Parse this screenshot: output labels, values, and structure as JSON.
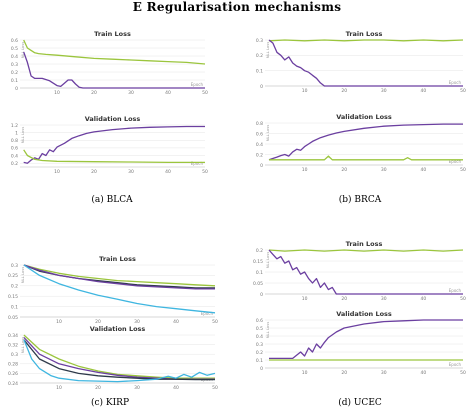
{
  "section_title": "E    Regularisation mechanisms",
  "captions": {
    "blca": "(a) BLCA",
    "brca": "(b) BRCA",
    "kirp": "(c) KIRP",
    "ucec": "(d) UCEC"
  },
  "colors": {
    "green": "#9bc53d",
    "purple": "#6b3fa0",
    "cyan": "#3fb6e0",
    "dark": "#2e3a4a",
    "grid": "#e6e6e6"
  },
  "chart_data": [
    {
      "type": "line",
      "panel": "BLCA",
      "title": "Train Loss",
      "ylabel": "NLL Loss",
      "xlabel": "Epoch",
      "xlim": [
        0,
        50
      ],
      "ylim": [
        0,
        0.6
      ],
      "yticks": [
        "0",
        "0.1",
        "0.2",
        "0.3",
        "0.4",
        "0.5",
        "0.6"
      ],
      "xticks": [
        "10",
        "20",
        "30",
        "40",
        "50"
      ],
      "series": [
        {
          "color": "#9bc53d",
          "x": [
            1,
            2,
            3,
            4,
            5,
            7,
            10,
            15,
            20,
            25,
            30,
            35,
            40,
            45,
            50
          ],
          "y": [
            0.6,
            0.5,
            0.47,
            0.44,
            0.43,
            0.42,
            0.41,
            0.39,
            0.37,
            0.36,
            0.35,
            0.34,
            0.33,
            0.32,
            0.3
          ]
        },
        {
          "color": "#6b3fa0",
          "x": [
            1,
            2,
            3,
            4,
            6,
            8,
            10,
            11,
            12,
            13,
            14,
            15,
            16,
            17,
            20,
            30,
            40,
            50
          ],
          "y": [
            0.45,
            0.32,
            0.15,
            0.12,
            0.12,
            0.09,
            0.03,
            0.02,
            0.06,
            0.1,
            0.1,
            0.05,
            0.01,
            0.0,
            0.0,
            0.0,
            0.0,
            0.0
          ]
        }
      ]
    },
    {
      "type": "line",
      "panel": "BLCA",
      "title": "Validation Loss",
      "ylabel": "NLL Loss",
      "xlabel": "Epoch",
      "xlim": [
        0,
        50
      ],
      "ylim": [
        0.1,
        1.2
      ],
      "yticks": [
        "0.2",
        "0.4",
        "0.6",
        "0.8",
        "1",
        "1.2"
      ],
      "xticks": [
        "10",
        "20",
        "30",
        "40",
        "50"
      ],
      "series": [
        {
          "color": "#6b3fa0",
          "x": [
            1,
            2,
            3,
            4,
            5,
            6,
            7,
            8,
            9,
            10,
            12,
            14,
            16,
            18,
            20,
            25,
            30,
            35,
            40,
            45,
            50
          ],
          "y": [
            0.22,
            0.2,
            0.28,
            0.34,
            0.3,
            0.45,
            0.4,
            0.55,
            0.5,
            0.62,
            0.72,
            0.85,
            0.92,
            0.98,
            1.02,
            1.08,
            1.12,
            1.14,
            1.15,
            1.16,
            1.16
          ]
        },
        {
          "color": "#9bc53d",
          "x": [
            1,
            2,
            4,
            6,
            10,
            20,
            30,
            40,
            50
          ],
          "y": [
            0.55,
            0.4,
            0.3,
            0.27,
            0.25,
            0.24,
            0.23,
            0.22,
            0.22
          ]
        }
      ]
    },
    {
      "type": "line",
      "panel": "BRCA",
      "title": "Train Loss",
      "ylabel": "NLL Loss",
      "xlabel": "Epoch",
      "xlim": [
        0,
        50
      ],
      "ylim": [
        0,
        0.3
      ],
      "yticks": [
        "0",
        "0.1",
        "0.2",
        "0.3"
      ],
      "xticks": [
        "10",
        "20",
        "30",
        "40",
        "50"
      ],
      "series": [
        {
          "color": "#9bc53d",
          "x": [
            1,
            5,
            10,
            15,
            20,
            25,
            30,
            35,
            40,
            45,
            50
          ],
          "y": [
            0.295,
            0.3,
            0.295,
            0.3,
            0.295,
            0.3,
            0.3,
            0.295,
            0.3,
            0.295,
            0.3
          ]
        },
        {
          "color": "#6b3fa0",
          "x": [
            1,
            2,
            3,
            4,
            5,
            6,
            7,
            8,
            9,
            10,
            11,
            12,
            13,
            14,
            15,
            20,
            30,
            40,
            50
          ],
          "y": [
            0.3,
            0.28,
            0.22,
            0.2,
            0.17,
            0.19,
            0.15,
            0.13,
            0.12,
            0.1,
            0.09,
            0.07,
            0.05,
            0.02,
            0.0,
            0.0,
            0.0,
            0.0,
            0.0
          ]
        }
      ]
    },
    {
      "type": "line",
      "panel": "BRCA",
      "title": "Validation Loss",
      "ylabel": "NLL Loss",
      "xlabel": "Epoch",
      "xlim": [
        0,
        50
      ],
      "ylim": [
        0,
        0.8
      ],
      "yticks": [
        "0",
        "0.2",
        "0.4",
        "0.6",
        "0.8"
      ],
      "xticks": [
        "10",
        "20",
        "30",
        "40",
        "50"
      ],
      "series": [
        {
          "color": "#6b3fa0",
          "x": [
            1,
            3,
            4,
            5,
            6,
            7,
            8,
            9,
            10,
            11,
            12,
            14,
            16,
            18,
            20,
            25,
            30,
            35,
            40,
            45,
            50
          ],
          "y": [
            0.1,
            0.15,
            0.18,
            0.2,
            0.17,
            0.25,
            0.3,
            0.28,
            0.35,
            0.4,
            0.45,
            0.52,
            0.57,
            0.61,
            0.64,
            0.7,
            0.74,
            0.76,
            0.77,
            0.78,
            0.78
          ]
        },
        {
          "color": "#9bc53d",
          "x": [
            1,
            5,
            10,
            15,
            16,
            17,
            20,
            25,
            30,
            35,
            36,
            37,
            40,
            45,
            50
          ],
          "y": [
            0.1,
            0.1,
            0.1,
            0.1,
            0.17,
            0.1,
            0.1,
            0.1,
            0.1,
            0.1,
            0.14,
            0.1,
            0.1,
            0.1,
            0.1
          ]
        }
      ]
    },
    {
      "type": "line",
      "panel": "KIRP",
      "title": "Train Loss",
      "ylabel": "NLL Loss",
      "xlabel": "Epoch",
      "xlim": [
        0,
        50
      ],
      "ylim": [
        0.05,
        0.3
      ],
      "yticks": [
        "0.05",
        "0.1",
        "0.15",
        "0.2",
        "0.25",
        "0.3"
      ],
      "xticks": [
        "10",
        "20",
        "30",
        "40",
        "50"
      ],
      "series": [
        {
          "color": "#9bc53d",
          "x": [
            1,
            5,
            10,
            15,
            20,
            25,
            30,
            35,
            40,
            45,
            50
          ],
          "y": [
            0.3,
            0.28,
            0.26,
            0.245,
            0.235,
            0.225,
            0.22,
            0.215,
            0.21,
            0.205,
            0.2
          ]
        },
        {
          "color": "#2e3a4a",
          "x": [
            1,
            5,
            10,
            15,
            20,
            25,
            30,
            35,
            40,
            45,
            50
          ],
          "y": [
            0.3,
            0.27,
            0.25,
            0.235,
            0.225,
            0.215,
            0.205,
            0.2,
            0.195,
            0.19,
            0.19
          ]
        },
        {
          "color": "#6b3fa0",
          "x": [
            1,
            5,
            10,
            15,
            20,
            25,
            30,
            35,
            40,
            45,
            50
          ],
          "y": [
            0.3,
            0.275,
            0.25,
            0.235,
            0.22,
            0.21,
            0.2,
            0.195,
            0.19,
            0.185,
            0.185
          ]
        },
        {
          "color": "#3fb6e0",
          "x": [
            1,
            5,
            10,
            15,
            20,
            25,
            30,
            35,
            40,
            45,
            50
          ],
          "y": [
            0.3,
            0.25,
            0.21,
            0.18,
            0.155,
            0.135,
            0.115,
            0.1,
            0.09,
            0.08,
            0.07
          ]
        }
      ]
    },
    {
      "type": "line",
      "panel": "KIRP",
      "title": "Validation Loss",
      "ylabel": "NLL Loss",
      "xlabel": "Epoch",
      "xlim": [
        0,
        50
      ],
      "ylim": [
        0.24,
        0.34
      ],
      "yticks": [
        "0.24",
        "0.26",
        "0.28",
        "0.3",
        "0.32",
        "0.34"
      ],
      "xticks": [
        "10",
        "20",
        "30",
        "40",
        "50"
      ],
      "series": [
        {
          "color": "#9bc53d",
          "x": [
            1,
            5,
            10,
            15,
            20,
            25,
            30,
            35,
            40,
            45,
            50
          ],
          "y": [
            0.34,
            0.31,
            0.29,
            0.275,
            0.265,
            0.258,
            0.255,
            0.252,
            0.25,
            0.25,
            0.25
          ]
        },
        {
          "color": "#6b3fa0",
          "x": [
            1,
            5,
            10,
            15,
            20,
            25,
            30,
            35,
            40,
            45,
            50
          ],
          "y": [
            0.335,
            0.3,
            0.28,
            0.27,
            0.262,
            0.256,
            0.252,
            0.25,
            0.248,
            0.248,
            0.248
          ]
        },
        {
          "color": "#2e3a4a",
          "x": [
            1,
            5,
            10,
            15,
            20,
            25,
            30,
            35,
            40,
            45,
            50
          ],
          "y": [
            0.33,
            0.29,
            0.27,
            0.26,
            0.255,
            0.252,
            0.25,
            0.248,
            0.248,
            0.247,
            0.247
          ]
        },
        {
          "color": "#3fb6e0",
          "x": [
            1,
            3,
            5,
            8,
            10,
            15,
            20,
            25,
            30,
            35,
            38,
            40,
            42,
            44,
            46,
            48,
            50
          ],
          "y": [
            0.33,
            0.29,
            0.27,
            0.255,
            0.25,
            0.245,
            0.244,
            0.243,
            0.245,
            0.248,
            0.254,
            0.25,
            0.258,
            0.252,
            0.262,
            0.256,
            0.26
          ]
        }
      ]
    },
    {
      "type": "line",
      "panel": "UCEC",
      "title": "Train Loss",
      "ylabel": "NLL Loss",
      "xlabel": "Epoch",
      "xlim": [
        0,
        50
      ],
      "ylim": [
        0,
        0.2
      ],
      "yticks": [
        "0",
        "0.05",
        "0.1",
        "0.15",
        "0.2"
      ],
      "xticks": [
        "10",
        "20",
        "30",
        "40",
        "50"
      ],
      "series": [
        {
          "color": "#9bc53d",
          "x": [
            1,
            5,
            10,
            15,
            20,
            25,
            30,
            35,
            40,
            45,
            50
          ],
          "y": [
            0.2,
            0.195,
            0.2,
            0.195,
            0.2,
            0.195,
            0.2,
            0.195,
            0.2,
            0.195,
            0.2
          ]
        },
        {
          "color": "#6b3fa0",
          "x": [
            1,
            2,
            3,
            4,
            5,
            6,
            7,
            8,
            9,
            10,
            11,
            12,
            13,
            14,
            15,
            16,
            17,
            18,
            20,
            30,
            40,
            50
          ],
          "y": [
            0.2,
            0.18,
            0.16,
            0.17,
            0.14,
            0.15,
            0.11,
            0.12,
            0.09,
            0.1,
            0.07,
            0.05,
            0.07,
            0.03,
            0.05,
            0.02,
            0.03,
            0.0,
            0.0,
            0.0,
            0.0,
            0.0
          ]
        }
      ]
    },
    {
      "type": "line",
      "panel": "UCEC",
      "title": "Validation Loss",
      "ylabel": "NLL Loss",
      "xlabel": "Epoch",
      "xlim": [
        0,
        50
      ],
      "ylim": [
        0,
        0.6
      ],
      "yticks": [
        "0",
        "0.1",
        "0.2",
        "0.3",
        "0.4",
        "0.5",
        "0.6"
      ],
      "xticks": [
        "10",
        "20",
        "30",
        "40",
        "50"
      ],
      "series": [
        {
          "color": "#6b3fa0",
          "x": [
            1,
            4,
            7,
            9,
            10,
            11,
            12,
            13,
            14,
            15,
            16,
            18,
            20,
            25,
            30,
            35,
            40,
            45,
            50
          ],
          "y": [
            0.12,
            0.12,
            0.12,
            0.2,
            0.15,
            0.25,
            0.2,
            0.3,
            0.25,
            0.32,
            0.38,
            0.45,
            0.5,
            0.55,
            0.58,
            0.59,
            0.6,
            0.6,
            0.6
          ]
        },
        {
          "color": "#9bc53d",
          "x": [
            1,
            5,
            10,
            15,
            20,
            25,
            30,
            35,
            40,
            45,
            50
          ],
          "y": [
            0.1,
            0.1,
            0.1,
            0.1,
            0.1,
            0.1,
            0.1,
            0.1,
            0.1,
            0.1,
            0.1
          ]
        }
      ]
    }
  ]
}
